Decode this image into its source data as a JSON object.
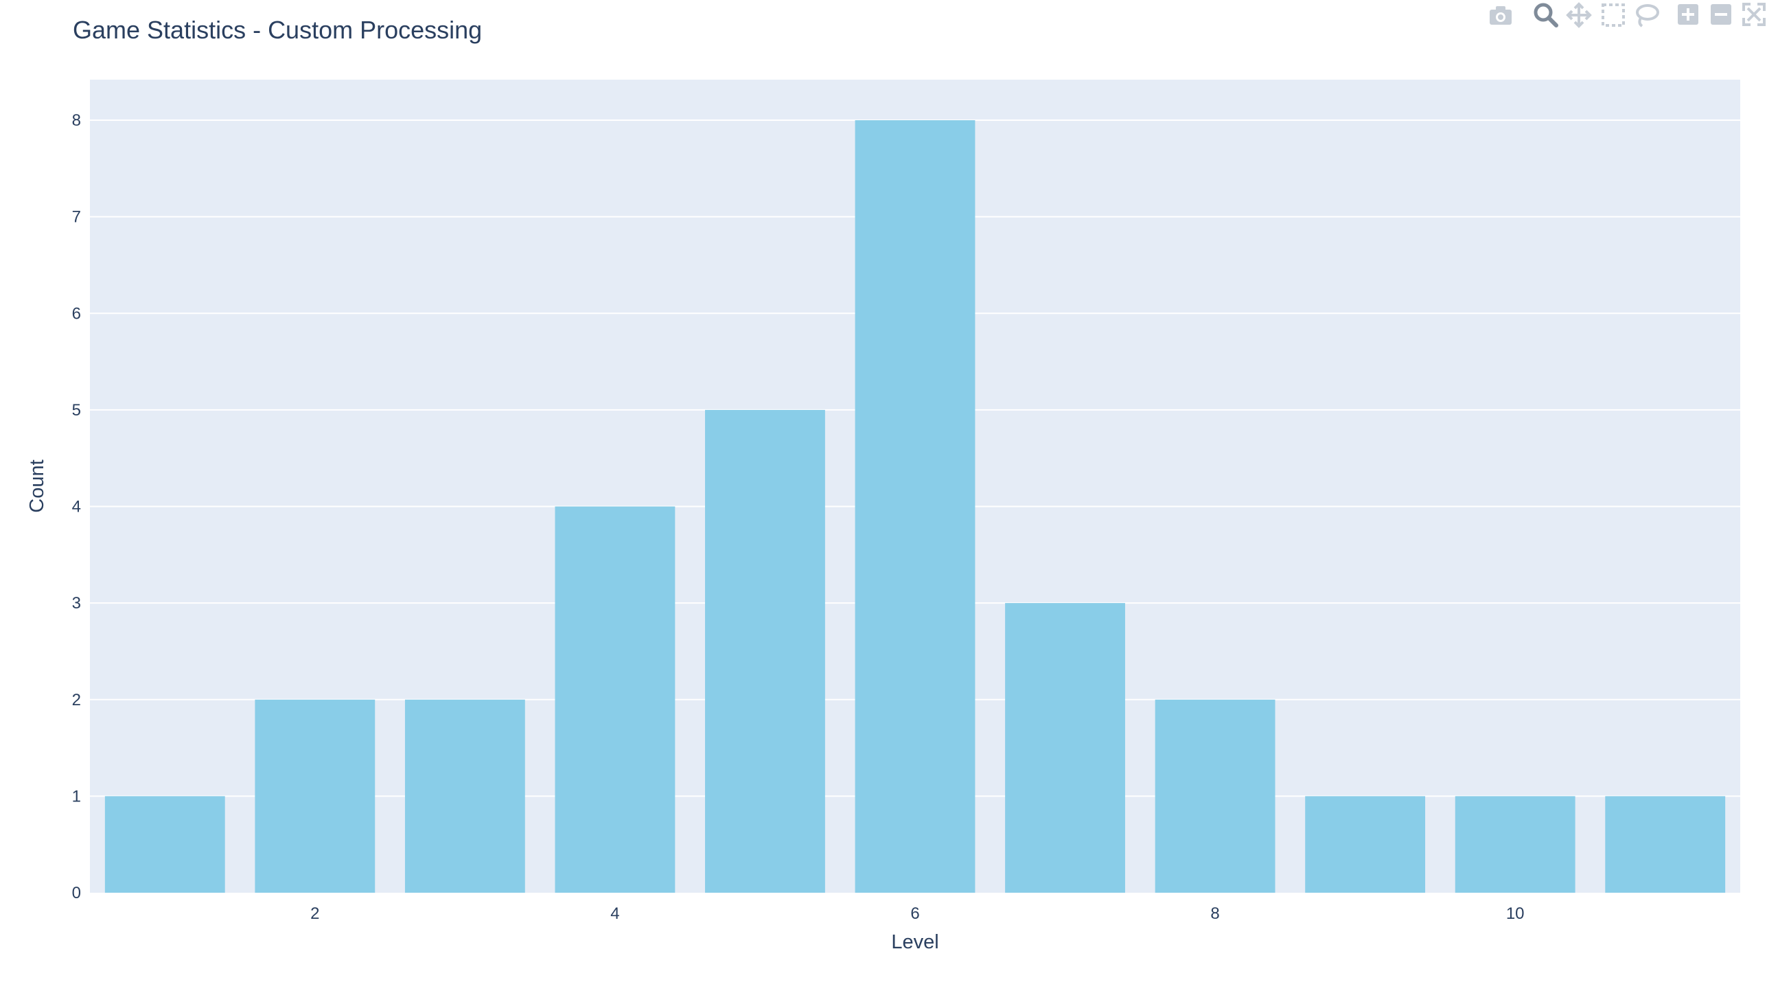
{
  "chart_data": {
    "type": "bar",
    "title": "Game Statistics - Custom Processing",
    "xlabel": "Level",
    "ylabel": "Count",
    "categories": [
      1,
      2,
      3,
      4,
      5,
      6,
      7,
      8,
      9,
      10,
      11
    ],
    "values": [
      1,
      2,
      2,
      4,
      5,
      8,
      3,
      2,
      1,
      1,
      1
    ],
    "xticks": [
      "2",
      "4",
      "6",
      "8",
      "10"
    ],
    "xtick_values": [
      2,
      4,
      6,
      8,
      10
    ],
    "yticks": [
      "0",
      "1",
      "2",
      "3",
      "4",
      "5",
      "6",
      "7",
      "8"
    ],
    "ylim": [
      0,
      8.42
    ],
    "xlim": [
      0.5,
      11.5
    ],
    "grid": true,
    "colors": {
      "bar": "#89cde8",
      "plot_bg": "#e5ecf6",
      "grid": "#ffffff",
      "text": "#2a3f5f"
    }
  },
  "modebar": {
    "icons": [
      "camera-icon",
      "zoom-icon",
      "pan-icon",
      "box-select-icon",
      "lasso-icon",
      "zoom-in-icon",
      "zoom-out-icon",
      "autoscale-icon"
    ]
  }
}
